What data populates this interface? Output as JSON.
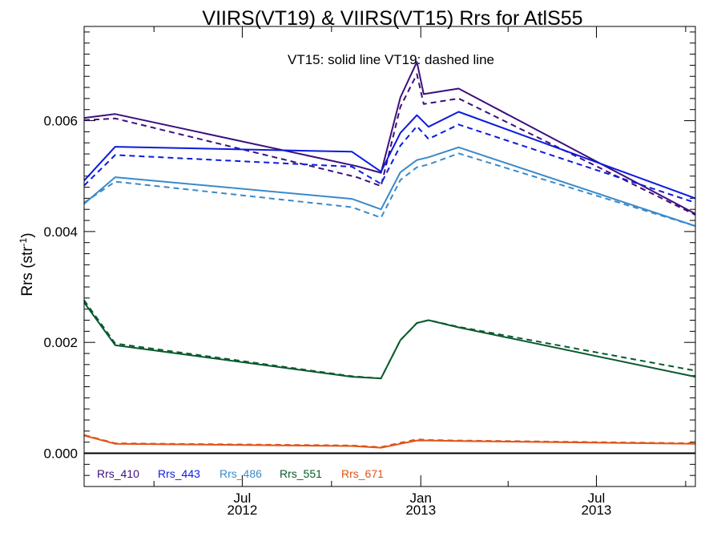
{
  "chart_data": {
    "type": "line",
    "title": "VIIRS(VT19) & VIIRS(VT15)  Rrs for AtlS55",
    "annotation": "VT15: solid line   VT19: dashed line",
    "ylabel": {
      "base": "Rrs (str",
      "sup": "-1",
      "close": ")"
    },
    "ylim": [
      -0.0006,
      0.0077
    ],
    "xlim": [
      "2012-01-20",
      "2013-10-11"
    ],
    "y_ticks": [
      {
        "value": 0.0,
        "label": "0.000"
      },
      {
        "value": 0.002,
        "label": "0.002"
      },
      {
        "value": 0.004,
        "label": "0.004"
      },
      {
        "value": 0.006,
        "label": "0.006"
      }
    ],
    "y_minor_step": 0.0002,
    "x_ticks": [
      {
        "date": "2012-07-01",
        "month": "Jul",
        "year": "2012"
      },
      {
        "date": "2013-01-01",
        "month": "Jan",
        "year": "2013"
      },
      {
        "date": "2013-07-01",
        "month": "Jul",
        "year": "2013"
      }
    ],
    "x_minor_ticks": [
      "2012-04-01",
      "2012-10-01",
      "2013-04-01",
      "2013-10-01"
    ],
    "zero_line": true,
    "legend": {
      "placement": "bottom-left, inside plot area",
      "orientation": "horizontal"
    },
    "series": [
      {
        "name": "Rrs_410",
        "color": "#3d0f7e",
        "vt15": [
          [
            "2012-01-20",
            0.00605
          ],
          [
            "2012-02-21",
            0.00612
          ],
          [
            "2012-10-27",
            0.00518
          ],
          [
            "2012-11-21",
            0.00506
          ],
          [
            "2012-12-11",
            0.00642
          ],
          [
            "2012-12-28",
            0.00706
          ],
          [
            "2013-01-04",
            0.00648
          ],
          [
            "2013-02-09",
            0.00658
          ],
          [
            "2013-10-11",
            0.00432
          ]
        ],
        "vt19": [
          [
            "2012-01-20",
            0.00601
          ],
          [
            "2012-02-21",
            0.00604
          ],
          [
            "2012-10-27",
            0.00498
          ],
          [
            "2012-11-21",
            0.00482
          ],
          [
            "2012-12-11",
            0.00625
          ],
          [
            "2012-12-28",
            0.00684
          ],
          [
            "2013-01-04",
            0.0063
          ],
          [
            "2013-02-09",
            0.0064
          ],
          [
            "2013-10-11",
            0.0043
          ]
        ]
      },
      {
        "name": "Rrs_443",
        "color": "#0a1be0",
        "vt15": [
          [
            "2012-01-20",
            0.00492
          ],
          [
            "2012-02-21",
            0.00553
          ],
          [
            "2012-10-22",
            0.00544
          ],
          [
            "2012-11-21",
            0.00508
          ],
          [
            "2012-12-11",
            0.00578
          ],
          [
            "2012-12-28",
            0.0061
          ],
          [
            "2013-01-09",
            0.00589
          ],
          [
            "2013-02-09",
            0.00616
          ],
          [
            "2013-10-11",
            0.0046
          ]
        ],
        "vt19": [
          [
            "2012-01-20",
            0.00483
          ],
          [
            "2012-02-21",
            0.00538
          ],
          [
            "2012-10-22",
            0.00517
          ],
          [
            "2012-11-21",
            0.00486
          ],
          [
            "2012-12-11",
            0.00555
          ],
          [
            "2012-12-28",
            0.0059
          ],
          [
            "2013-01-09",
            0.00567
          ],
          [
            "2013-02-09",
            0.00593
          ],
          [
            "2013-10-11",
            0.00452
          ]
        ]
      },
      {
        "name": "Rrs_486",
        "color": "#3a8ac9",
        "vt15": [
          [
            "2012-01-20",
            0.0045
          ],
          [
            "2012-02-21",
            0.00498
          ],
          [
            "2012-10-22",
            0.00459
          ],
          [
            "2012-11-21",
            0.0044
          ],
          [
            "2012-12-11",
            0.00507
          ],
          [
            "2012-12-28",
            0.00529
          ],
          [
            "2013-01-09",
            0.00534
          ],
          [
            "2013-02-09",
            0.00552
          ],
          [
            "2013-10-11",
            0.0041
          ]
        ],
        "vt19": [
          [
            "2012-01-20",
            0.00452
          ],
          [
            "2012-02-21",
            0.0049
          ],
          [
            "2012-10-22",
            0.00444
          ],
          [
            "2012-11-21",
            0.00425
          ],
          [
            "2012-12-11",
            0.00493
          ],
          [
            "2012-12-28",
            0.00516
          ],
          [
            "2013-01-09",
            0.00521
          ],
          [
            "2013-02-09",
            0.00541
          ],
          [
            "2013-10-11",
            0.0041
          ]
        ]
      },
      {
        "name": "Rrs_551",
        "color": "#0a5a2c",
        "vt15": [
          [
            "2012-01-20",
            0.00272
          ],
          [
            "2012-02-21",
            0.00195
          ],
          [
            "2012-10-22",
            0.00138
          ],
          [
            "2012-11-21",
            0.00135
          ],
          [
            "2012-12-11",
            0.00204
          ],
          [
            "2012-12-28",
            0.00235
          ],
          [
            "2013-01-09",
            0.0024
          ],
          [
            "2013-02-09",
            0.00227
          ],
          [
            "2013-10-11",
            0.00138
          ]
        ],
        "vt19": [
          [
            "2012-01-20",
            0.00276
          ],
          [
            "2012-02-21",
            0.00198
          ],
          [
            "2012-10-22",
            0.00139
          ],
          [
            "2012-11-21",
            0.00135
          ],
          [
            "2012-12-11",
            0.00204
          ],
          [
            "2012-12-28",
            0.00235
          ],
          [
            "2013-01-09",
            0.0024
          ],
          [
            "2013-02-09",
            0.00228
          ],
          [
            "2013-10-11",
            0.00149
          ]
        ]
      },
      {
        "name": "Rrs_671",
        "color": "#e05418",
        "vt15": [
          [
            "2012-01-20",
            0.00032
          ],
          [
            "2012-02-21",
            0.00017
          ],
          [
            "2012-10-22",
            0.00013
          ],
          [
            "2012-11-21",
            0.0001
          ],
          [
            "2012-12-11",
            0.00017
          ],
          [
            "2012-12-28",
            0.00023
          ],
          [
            "2013-01-09",
            0.00023
          ],
          [
            "2013-02-09",
            0.00022
          ],
          [
            "2013-10-11",
            0.00017
          ]
        ],
        "vt19": [
          [
            "2012-01-20",
            0.00033
          ],
          [
            "2012-02-21",
            0.00018
          ],
          [
            "2012-10-22",
            0.00014
          ],
          [
            "2012-11-21",
            0.00011
          ],
          [
            "2012-12-11",
            0.00019
          ],
          [
            "2012-12-28",
            0.00025
          ],
          [
            "2013-01-09",
            0.00024
          ],
          [
            "2013-02-09",
            0.00023
          ],
          [
            "2013-10-11",
            0.00018
          ]
        ]
      }
    ]
  }
}
